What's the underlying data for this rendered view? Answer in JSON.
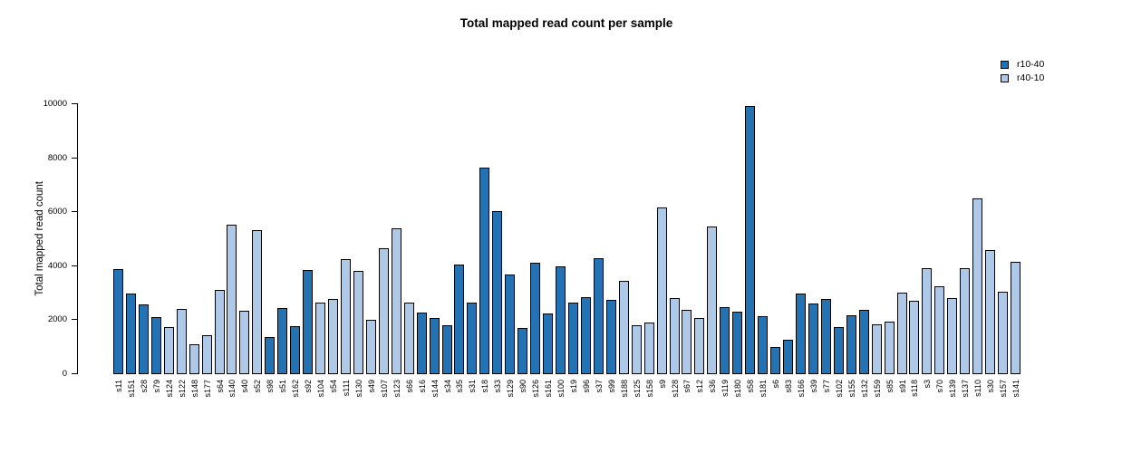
{
  "chart_data": {
    "type": "bar",
    "title": "Total mapped read count per sample",
    "xlabel": "",
    "ylabel": "Total mapped read count",
    "ylim": [
      0,
      10000
    ],
    "yticks": [
      0,
      2000,
      4000,
      6000,
      8000,
      10000
    ],
    "grid": false,
    "legend_position": "top-right",
    "legend": [
      {
        "label": "r10-40",
        "color": "#2373b4"
      },
      {
        "label": "r40-10",
        "color": "#aec9e8"
      }
    ],
    "bar_border_color": "#000000",
    "background_color": "#ffffff",
    "samples": [
      {
        "label": "s11",
        "value": 3900,
        "group": "r10-40"
      },
      {
        "label": "s151",
        "value": 2990,
        "group": "r10-40"
      },
      {
        "label": "s28",
        "value": 2570,
        "group": "r10-40"
      },
      {
        "label": "s79",
        "value": 2100,
        "group": "r10-40"
      },
      {
        "label": "s124",
        "value": 1750,
        "group": "r40-10"
      },
      {
        "label": "s122",
        "value": 2400,
        "group": "r40-10"
      },
      {
        "label": "s148",
        "value": 1100,
        "group": "r40-10"
      },
      {
        "label": "s177",
        "value": 1440,
        "group": "r40-10"
      },
      {
        "label": "s64",
        "value": 3120,
        "group": "r40-10"
      },
      {
        "label": "s140",
        "value": 5550,
        "group": "r40-10"
      },
      {
        "label": "s40",
        "value": 2340,
        "group": "r40-10"
      },
      {
        "label": "s52",
        "value": 5330,
        "group": "r40-10"
      },
      {
        "label": "s98",
        "value": 1360,
        "group": "r10-40"
      },
      {
        "label": "s51",
        "value": 2450,
        "group": "r10-40"
      },
      {
        "label": "s162",
        "value": 1780,
        "group": "r10-40"
      },
      {
        "label": "s92",
        "value": 3850,
        "group": "r10-40"
      },
      {
        "label": "s104",
        "value": 2640,
        "group": "r40-10"
      },
      {
        "label": "s54",
        "value": 2800,
        "group": "r40-10"
      },
      {
        "label": "s111",
        "value": 4270,
        "group": "r40-10"
      },
      {
        "label": "s130",
        "value": 3820,
        "group": "r40-10"
      },
      {
        "label": "s49",
        "value": 2000,
        "group": "r40-10"
      },
      {
        "label": "s107",
        "value": 4650,
        "group": "r40-10"
      },
      {
        "label": "s123",
        "value": 5390,
        "group": "r40-10"
      },
      {
        "label": "s66",
        "value": 2640,
        "group": "r40-10"
      },
      {
        "label": "s16",
        "value": 2280,
        "group": "r10-40"
      },
      {
        "label": "s144",
        "value": 2090,
        "group": "r10-40"
      },
      {
        "label": "s34",
        "value": 1820,
        "group": "r10-40"
      },
      {
        "label": "s35",
        "value": 4070,
        "group": "r10-40"
      },
      {
        "label": "s31",
        "value": 2650,
        "group": "r10-40"
      },
      {
        "label": "s18",
        "value": 7650,
        "group": "r10-40"
      },
      {
        "label": "s33",
        "value": 6030,
        "group": "r10-40"
      },
      {
        "label": "s129",
        "value": 3700,
        "group": "r10-40"
      },
      {
        "label": "s90",
        "value": 1700,
        "group": "r10-40"
      },
      {
        "label": "s126",
        "value": 4120,
        "group": "r10-40"
      },
      {
        "label": "s161",
        "value": 2250,
        "group": "r10-40"
      },
      {
        "label": "s100",
        "value": 3980,
        "group": "r10-40"
      },
      {
        "label": "s19",
        "value": 2650,
        "group": "r10-40"
      },
      {
        "label": "s96",
        "value": 2840,
        "group": "r10-40"
      },
      {
        "label": "s37",
        "value": 4280,
        "group": "r10-40"
      },
      {
        "label": "s99",
        "value": 2750,
        "group": "r10-40"
      },
      {
        "label": "s188",
        "value": 3450,
        "group": "r40-10"
      },
      {
        "label": "s125",
        "value": 1820,
        "group": "r40-10"
      },
      {
        "label": "s158",
        "value": 1910,
        "group": "r40-10"
      },
      {
        "label": "s9",
        "value": 6160,
        "group": "r40-10"
      },
      {
        "label": "s128",
        "value": 2830,
        "group": "r40-10"
      },
      {
        "label": "s67",
        "value": 2370,
        "group": "r40-10"
      },
      {
        "label": "s12",
        "value": 2090,
        "group": "r40-10"
      },
      {
        "label": "s36",
        "value": 5480,
        "group": "r40-10"
      },
      {
        "label": "s119",
        "value": 2470,
        "group": "r10-40"
      },
      {
        "label": "s180",
        "value": 2330,
        "group": "r10-40"
      },
      {
        "label": "s58",
        "value": 9940,
        "group": "r10-40"
      },
      {
        "label": "s181",
        "value": 2140,
        "group": "r10-40"
      },
      {
        "label": "s6",
        "value": 1000,
        "group": "r10-40"
      },
      {
        "label": "s83",
        "value": 1280,
        "group": "r10-40"
      },
      {
        "label": "s166",
        "value": 2980,
        "group": "r10-40"
      },
      {
        "label": "s39",
        "value": 2620,
        "group": "r10-40"
      },
      {
        "label": "s77",
        "value": 2780,
        "group": "r10-40"
      },
      {
        "label": "s102",
        "value": 1760,
        "group": "r10-40"
      },
      {
        "label": "s155",
        "value": 2170,
        "group": "r10-40"
      },
      {
        "label": "s132",
        "value": 2390,
        "group": "r10-40"
      },
      {
        "label": "s159",
        "value": 1840,
        "group": "r40-10"
      },
      {
        "label": "s85",
        "value": 1950,
        "group": "r40-10"
      },
      {
        "label": "s91",
        "value": 3030,
        "group": "r40-10"
      },
      {
        "label": "s118",
        "value": 2710,
        "group": "r40-10"
      },
      {
        "label": "s3",
        "value": 3940,
        "group": "r40-10"
      },
      {
        "label": "s70",
        "value": 3240,
        "group": "r40-10"
      },
      {
        "label": "s139",
        "value": 2810,
        "group": "r40-10"
      },
      {
        "label": "s137",
        "value": 3920,
        "group": "r40-10"
      },
      {
        "label": "s110",
        "value": 6500,
        "group": "r40-10"
      },
      {
        "label": "s30",
        "value": 4590,
        "group": "r40-10"
      },
      {
        "label": "s157",
        "value": 3040,
        "group": "r40-10"
      },
      {
        "label": "s141",
        "value": 4150,
        "group": "r40-10"
      }
    ]
  }
}
